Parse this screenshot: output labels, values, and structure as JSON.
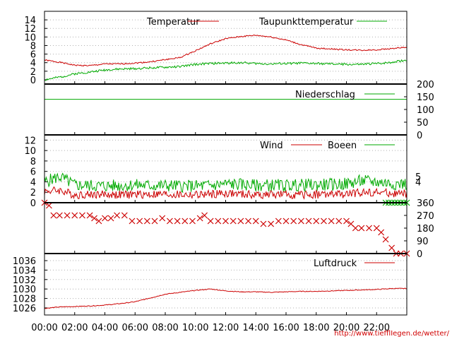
{
  "colors": {
    "red": "#cc0000",
    "green": "#00aa00",
    "grid": "#b0b0b0"
  },
  "chart_data": [
    {
      "type": "line",
      "ylim": [
        -1,
        16
      ],
      "yticks": [
        "0",
        "2",
        "4",
        "6",
        "8",
        "10",
        "12",
        "14"
      ],
      "grid": true,
      "legend_position": "top",
      "series": [
        {
          "name": "Temperatur",
          "color": "red",
          "seed": 1,
          "jitter": 0.15,
          "x": [
            0,
            1,
            2,
            3,
            4,
            5,
            6,
            7,
            8,
            9,
            10,
            11,
            12,
            13,
            14,
            15,
            16,
            17,
            18,
            19,
            20,
            21,
            22,
            23,
            24
          ],
          "y": [
            4.6,
            4.1,
            3.4,
            3.3,
            3.7,
            3.7,
            3.9,
            4.2,
            4.7,
            5.2,
            6.8,
            8.4,
            9.6,
            10.1,
            10.4,
            10.0,
            9.3,
            8.2,
            7.4,
            7.2,
            7.0,
            6.9,
            7.0,
            7.3,
            7.6
          ]
        },
        {
          "name": "Taupunkttemperatur",
          "color": "green",
          "seed": 2,
          "jitter": 0.25,
          "x": [
            0,
            1,
            2,
            3,
            4,
            5,
            6,
            7,
            8,
            9,
            10,
            11,
            12,
            13,
            14,
            15,
            16,
            17,
            18,
            19,
            20,
            21,
            22,
            23,
            24
          ],
          "y": [
            0.0,
            0.6,
            1.4,
            1.8,
            2.3,
            2.5,
            2.6,
            2.8,
            2.9,
            3.1,
            3.6,
            3.8,
            3.9,
            4.0,
            3.8,
            3.7,
            3.8,
            3.9,
            3.8,
            3.7,
            3.6,
            3.6,
            3.8,
            4.1,
            4.6
          ]
        }
      ]
    },
    {
      "type": "line",
      "ylim": [
        0,
        200
      ],
      "yticks": [
        "0",
        "50",
        "100",
        "150",
        "200"
      ],
      "grid": false,
      "legend_position": "top-right",
      "series": [
        {
          "name": "Niederschlag",
          "color": "green",
          "seed": 3,
          "jitter": 0,
          "x": [
            0,
            24
          ],
          "y": [
            140,
            140
          ]
        }
      ]
    },
    {
      "type": "line",
      "ylim": [
        0,
        13
      ],
      "yticks": [
        "0",
        "2",
        "4",
        "6",
        "8",
        "10",
        "12"
      ],
      "right_labels": {
        "values": [
          4,
          5
        ],
        "labels": [
          "4",
          "5"
        ]
      },
      "grid": true,
      "legend_position": "top",
      "series": [
        {
          "name": "Wind",
          "color": "red",
          "seed": 4,
          "jitter": 0.8,
          "x": [
            0,
            1,
            2,
            3,
            4,
            5,
            6,
            7,
            8,
            9,
            10,
            11,
            12,
            13,
            14,
            15,
            16,
            17,
            18,
            19,
            20,
            21,
            22,
            23,
            24
          ],
          "y": [
            2.2,
            2.4,
            1.5,
            1.6,
            1.6,
            1.5,
            1.6,
            1.6,
            1.6,
            1.5,
            1.5,
            1.6,
            1.8,
            1.6,
            1.5,
            1.6,
            1.5,
            1.5,
            1.6,
            1.6,
            1.6,
            2.0,
            2.0,
            1.8,
            1.6
          ]
        },
        {
          "name": "Boeen",
          "color": "green",
          "seed": 5,
          "jitter": 1.2,
          "x": [
            0,
            1,
            2,
            3,
            4,
            5,
            6,
            7,
            8,
            9,
            10,
            11,
            12,
            13,
            14,
            15,
            16,
            17,
            18,
            19,
            20,
            21,
            22,
            23,
            24
          ],
          "y": [
            4.0,
            5.0,
            3.4,
            3.3,
            3.2,
            3.3,
            3.4,
            3.3,
            3.3,
            3.2,
            3.2,
            3.3,
            3.6,
            3.5,
            3.3,
            3.4,
            3.3,
            3.4,
            3.4,
            3.5,
            3.6,
            4.2,
            4.0,
            3.7,
            3.6
          ]
        }
      ]
    },
    {
      "type": "scatter",
      "ylim": [
        0,
        360
      ],
      "yticks": [
        "0",
        "90",
        "180",
        "270",
        "360"
      ],
      "grid": false,
      "series": [
        {
          "name": "",
          "color": "red",
          "marker": "x",
          "x": [
            0,
            0.3,
            0.6,
            1.0,
            1.5,
            2.0,
            2.5,
            3.0,
            3.3,
            3.6,
            4.0,
            4.4,
            4.8,
            5.3,
            5.8,
            6.3,
            6.8,
            7.3,
            7.8,
            8.3,
            8.8,
            9.3,
            9.8,
            10.3,
            10.6,
            11.0,
            11.5,
            12.0,
            12.5,
            13.0,
            13.5,
            14.0,
            14.5,
            15.0,
            15.5,
            16.0,
            16.5,
            17.0,
            17.5,
            18.0,
            18.5,
            19.0,
            19.5,
            20.0,
            20.3,
            20.6,
            21.0,
            21.5,
            22.0,
            22.3,
            22.6,
            23.0,
            23.3,
            23.6,
            24.0
          ],
          "y": [
            360,
            340,
            270,
            270,
            270,
            270,
            270,
            270,
            250,
            230,
            250,
            250,
            270,
            270,
            230,
            230,
            230,
            230,
            250,
            230,
            230,
            230,
            230,
            250,
            270,
            230,
            230,
            230,
            230,
            230,
            230,
            230,
            210,
            210,
            230,
            230,
            230,
            230,
            230,
            230,
            230,
            230,
            230,
            230,
            210,
            180,
            180,
            180,
            180,
            150,
            100,
            40,
            0,
            0,
            0
          ]
        },
        {
          "name": "",
          "color": "green",
          "marker": "x",
          "x": [
            22.6,
            22.8,
            23.0,
            23.2,
            23.4,
            23.6,
            23.8,
            24.0
          ],
          "y": [
            360,
            360,
            360,
            360,
            360,
            360,
            360,
            360
          ]
        }
      ]
    },
    {
      "type": "line",
      "ylim": [
        1024.5,
        1037.5
      ],
      "yticks": [
        "1026",
        "1028",
        "1030",
        "1032",
        "1034",
        "1036"
      ],
      "grid": true,
      "legend_position": "top-right",
      "series": [
        {
          "name": "Luftdruck",
          "color": "red",
          "seed": 6,
          "jitter": 0.08,
          "x": [
            0,
            1,
            2,
            3,
            4,
            5,
            6,
            7,
            8,
            9,
            10,
            11,
            12,
            13,
            14,
            15,
            16,
            17,
            18,
            19,
            20,
            21,
            22,
            23,
            24
          ],
          "y": [
            1025.9,
            1026.2,
            1026.3,
            1026.4,
            1026.6,
            1026.9,
            1027.3,
            1028.1,
            1028.9,
            1029.3,
            1029.7,
            1030.0,
            1029.6,
            1029.4,
            1029.4,
            1029.3,
            1029.4,
            1029.5,
            1029.5,
            1029.6,
            1029.7,
            1029.8,
            1029.9,
            1030.1,
            1030.1
          ]
        }
      ]
    }
  ],
  "x_axis": {
    "labels": [
      "00:00",
      "02:00",
      "04:00",
      "06:00",
      "08:00",
      "10:00",
      "12:00",
      "14:00",
      "16:00",
      "18:00",
      "20:00",
      "22:00"
    ],
    "values": [
      0,
      2,
      4,
      6,
      8,
      10,
      12,
      14,
      16,
      18,
      20,
      22
    ],
    "xlim": [
      0,
      24
    ]
  },
  "footer": {
    "url": "http://www.tiefflIegen.de/wetter/"
  }
}
